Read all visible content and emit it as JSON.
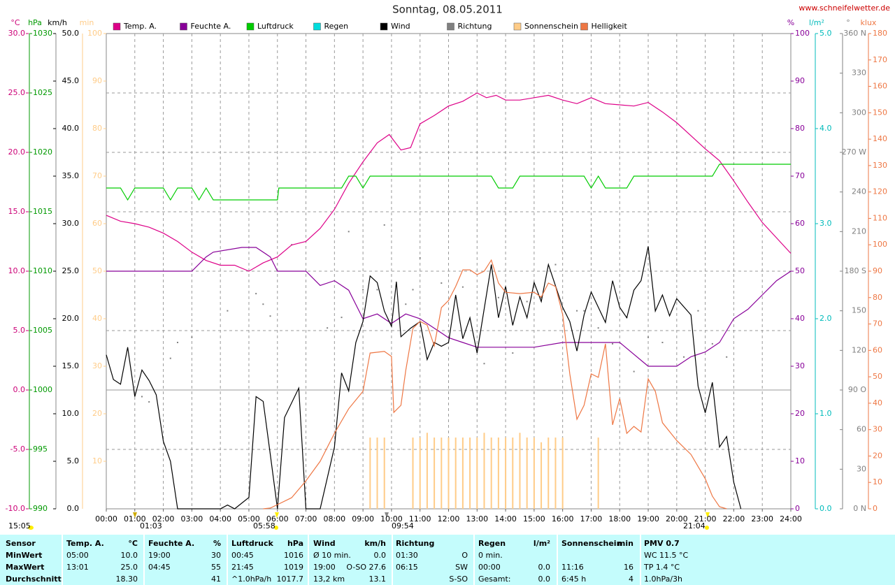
{
  "chart_data": {
    "type": "line",
    "title": "Sonntag, 08.05.2011",
    "source": "www.schneifelwetter.de",
    "xlim": [
      0,
      24
    ],
    "xticks": [
      {
        "value": 0,
        "label": "00:00"
      },
      {
        "value": 1,
        "label": "01:00"
      },
      {
        "value": 2,
        "label": "02:00"
      },
      {
        "value": 3,
        "label": "03:00"
      },
      {
        "value": 4,
        "label": "04:00"
      },
      {
        "value": 5,
        "label": "05:00"
      },
      {
        "value": 6,
        "label": "06:00"
      },
      {
        "value": 7,
        "label": "07:00"
      },
      {
        "value": 8,
        "label": "08:00"
      },
      {
        "value": 9,
        "label": "09:00"
      },
      {
        "value": 10,
        "label": "10:00"
      },
      {
        "value": 11,
        "label": "11:00"
      },
      {
        "value": 12,
        "label": "12:00"
      },
      {
        "value": 13,
        "label": "13:00"
      },
      {
        "value": 14,
        "label": "14:00"
      },
      {
        "value": 15,
        "label": "15:00"
      },
      {
        "value": 16,
        "label": "16:00"
      },
      {
        "value": 17,
        "label": "17:00"
      },
      {
        "value": 18,
        "label": "18:00"
      },
      {
        "value": 19,
        "label": "19:00"
      },
      {
        "value": 20,
        "label": "20:00"
      },
      {
        "value": 21,
        "label": "21:00"
      },
      {
        "value": 22,
        "label": "22:00"
      },
      {
        "value": 23,
        "label": "23:00"
      },
      {
        "value": 24,
        "label": "24:00"
      }
    ],
    "grid": true,
    "axes": {
      "y": {
        "unit": "°C",
        "color": "#cc0077",
        "ylim": [
          -10,
          30
        ],
        "yticks": [
          {
            "value": -10,
            "label": "-10.0"
          },
          {
            "value": -5,
            "label": "-5.0"
          },
          {
            "value": 0,
            "label": "0.0"
          },
          {
            "value": 5,
            "label": "5.0"
          },
          {
            "value": 10,
            "label": "10.0"
          },
          {
            "value": 15,
            "label": "15.0"
          },
          {
            "value": 20,
            "label": "20.0"
          },
          {
            "value": 25,
            "label": "25.0"
          },
          {
            "value": 30,
            "label": "30.0"
          }
        ]
      },
      "y2": {
        "unit": "hPa",
        "color": "#009900",
        "ylim": [
          990,
          1030
        ],
        "yticks": [
          990,
          995,
          1000,
          1005,
          1010,
          1015,
          1020,
          1025,
          1030
        ]
      },
      "y3": {
        "unit": "km/h",
        "color": "#000000",
        "ylim": [
          0,
          50
        ],
        "yticks": [
          {
            "value": 0,
            "label": "0.0"
          },
          {
            "value": 5,
            "label": "5.0"
          },
          {
            "value": 10,
            "label": "10.0"
          },
          {
            "value": 15,
            "label": "15.0"
          },
          {
            "value": 20,
            "label": "20.0"
          },
          {
            "value": 25,
            "label": "25.0"
          },
          {
            "value": 30,
            "label": "30.0"
          },
          {
            "value": 35,
            "label": "35.0"
          },
          {
            "value": 40,
            "label": "40.0"
          },
          {
            "value": 45,
            "label": "45.0"
          },
          {
            "value": 50,
            "label": "50.0"
          }
        ]
      },
      "y4": {
        "unit": "min",
        "color": "#ffcc88",
        "ylim": [
          0,
          100
        ],
        "yticks": [
          10,
          20,
          30,
          40,
          50,
          60,
          70,
          80,
          90,
          100
        ]
      },
      "y5": {
        "unit": "%",
        "color": "#880099",
        "ylim": [
          0,
          100
        ],
        "yticks": [
          0,
          10,
          20,
          30,
          40,
          50,
          60,
          70,
          80,
          90,
          100
        ]
      },
      "y6": {
        "unit": "l/m²",
        "color": "#00bbbb",
        "ylim": [
          0,
          5
        ],
        "yticks": [
          {
            "value": 0,
            "label": "0.0"
          },
          {
            "value": 1,
            "label": "1.0"
          },
          {
            "value": 2,
            "label": "2.0"
          },
          {
            "value": 3,
            "label": "3.0"
          },
          {
            "value": 4,
            "label": "4.0"
          },
          {
            "value": 5,
            "label": "5.0"
          }
        ]
      },
      "y7": {
        "unit": "°",
        "color": "#808080",
        "ylim": [
          0,
          360
        ],
        "yticks": [
          {
            "value": 0,
            "label": "0 N"
          },
          30,
          60,
          {
            "value": 90,
            "label": "90 O"
          },
          120,
          150,
          {
            "value": 180,
            "label": "180 S"
          },
          210,
          240,
          {
            "value": 270,
            "label": "270 W"
          },
          300,
          330,
          {
            "value": 360,
            "label": "360 N"
          }
        ]
      },
      "y8": {
        "unit": "klux",
        "color": "#ee7744",
        "ylim": [
          0,
          180
        ],
        "yticks": [
          0,
          10,
          20,
          30,
          40,
          50,
          60,
          70,
          80,
          90,
          100,
          110,
          120,
          130,
          140,
          150,
          160,
          170,
          180
        ]
      }
    },
    "series": [
      {
        "name": "Temp. A.",
        "color": "#dd0088",
        "axis": "y",
        "type": "line",
        "x": [
          0,
          0.5,
          1,
          1.5,
          2,
          2.5,
          3,
          3.5,
          4,
          4.5,
          5,
          5.5,
          6,
          6.5,
          7,
          7.5,
          8,
          8.5,
          9,
          9.5,
          9.92,
          10.33,
          10.67,
          11,
          11.5,
          12,
          12.5,
          13,
          13.33,
          13.67,
          14,
          14.5,
          15,
          15.5,
          16,
          16.5,
          17,
          17.5,
          18,
          18.5,
          19,
          19.5,
          20,
          20.5,
          21,
          21.5,
          22,
          22.5,
          23,
          23.5,
          24
        ],
        "values": [
          14.7,
          14.2,
          14.0,
          13.7,
          13.2,
          12.5,
          11.6,
          10.9,
          10.5,
          10.5,
          10.0,
          10.7,
          11.2,
          12.2,
          12.5,
          13.6,
          15.2,
          17.4,
          19.2,
          20.8,
          21.5,
          20.2,
          20.4,
          22.4,
          23.1,
          23.9,
          24.3,
          25.0,
          24.6,
          24.8,
          24.4,
          24.4,
          24.6,
          24.8,
          24.4,
          24.1,
          24.6,
          24.1,
          24.0,
          23.9,
          24.2,
          23.4,
          22.5,
          21.4,
          20.3,
          19.3,
          17.6,
          15.8,
          14.1,
          12.8,
          11.5
        ]
      },
      {
        "name": "Feuchte A.",
        "color": "#880099",
        "axis": "y5",
        "type": "line",
        "x": [
          0,
          3,
          3.5,
          3.75,
          4.75,
          5.25,
          5.75,
          6,
          7,
          7.5,
          8,
          8.5,
          9,
          9.5,
          10,
          10.5,
          11,
          11.5,
          12,
          12.5,
          13,
          14,
          15,
          16,
          17,
          18,
          19,
          19.5,
          20,
          20.5,
          21,
          21.5,
          22,
          22.5,
          23,
          23.5,
          24
        ],
        "values": [
          50,
          50,
          53,
          54,
          55,
          55,
          53,
          50,
          50,
          47,
          48,
          46,
          40,
          41,
          39,
          41,
          40,
          38,
          36,
          35,
          34,
          34,
          34,
          35,
          35,
          35,
          30,
          30,
          30,
          32,
          33,
          35,
          40,
          42,
          45,
          48,
          50
        ]
      },
      {
        "name": "Luftdruck",
        "color": "#00cc00",
        "axis": "y2",
        "type": "line",
        "x": [
          0,
          0.5,
          0.75,
          1,
          2,
          2.25,
          2.5,
          3,
          3.25,
          3.5,
          3.75,
          6,
          6.05,
          8.25,
          8.5,
          8.75,
          9,
          9.25,
          13.5,
          13.75,
          14.25,
          14.5,
          16.75,
          17,
          17.25,
          17.5,
          18.25,
          18.5,
          21.25,
          21.5,
          24
        ],
        "values": [
          1017,
          1017,
          1016,
          1017,
          1017,
          1016,
          1017,
          1017,
          1016,
          1017,
          1016,
          1016,
          1017,
          1017,
          1018,
          1018,
          1017,
          1018,
          1018,
          1017,
          1017,
          1018,
          1018,
          1017,
          1018,
          1017,
          1017,
          1018,
          1018,
          1019,
          1019
        ]
      },
      {
        "name": "Regen",
        "color": "#00dddd",
        "axis": "y6",
        "type": "line",
        "x": [],
        "values": []
      },
      {
        "name": "Wind",
        "color": "#000000",
        "axis": "y3",
        "type": "line",
        "x": [
          0,
          0.25,
          0.5,
          0.75,
          1,
          1.25,
          1.5,
          1.75,
          2,
          2.25,
          2.5,
          4,
          4.25,
          4.5,
          5,
          5.25,
          5.5,
          5.75,
          6,
          6.25,
          6.75,
          7,
          7.5,
          8,
          8.25,
          8.5,
          8.75,
          9,
          9.25,
          9.5,
          9.75,
          10,
          10.17,
          10.33,
          10.67,
          11,
          11.25,
          11.5,
          11.75,
          12,
          12.25,
          12.5,
          12.75,
          13,
          13.5,
          13.75,
          14,
          14.25,
          14.5,
          14.75,
          15,
          15.25,
          15.5,
          16,
          16.25,
          16.5,
          16.75,
          17,
          17.5,
          17.75,
          18,
          18.25,
          18.5,
          18.75,
          19,
          19.25,
          19.5,
          19.75,
          20,
          20.5,
          20.75,
          21,
          21.25,
          21.5,
          21.75,
          22,
          22.25
        ],
        "values": [
          16.2,
          13.6,
          13.1,
          17,
          11.8,
          14.6,
          13.5,
          12,
          7.1,
          5,
          0,
          0,
          0.4,
          0,
          1.2,
          11.8,
          11.3,
          5.7,
          0,
          9.6,
          12.7,
          0,
          0,
          6.5,
          14.3,
          12.4,
          17.5,
          19.7,
          24.5,
          23.8,
          20.8,
          19.2,
          23.9,
          18.1,
          19,
          19.7,
          15.7,
          17.5,
          17.1,
          17.5,
          22.5,
          17.9,
          20.1,
          16.4,
          25.7,
          20.1,
          23.4,
          19.3,
          22.3,
          20.1,
          23.8,
          21.8,
          25.7,
          21.2,
          19.7,
          16.6,
          20.4,
          22.8,
          19.6,
          24,
          21.2,
          20.1,
          23,
          24,
          27.6,
          20.8,
          22.5,
          20.3,
          22.1,
          20.4,
          12.9,
          10.1,
          13.3,
          6.5,
          7.6,
          2.8,
          0
        ]
      },
      {
        "name": "Richtung",
        "color": "#808080",
        "axis": "y7",
        "type": "scatter",
        "x": [
          1.25,
          1.5,
          2.25,
          2.5,
          3,
          4.25,
          5.25,
          5.5,
          5.75,
          6.5,
          7.75,
          8.25,
          8.5,
          9,
          9.5,
          9.75,
          10.5,
          10.75,
          11,
          11.75,
          12.5,
          13.25,
          13.75,
          14.25,
          14.75,
          15.25,
          15.75,
          16.5,
          16.75,
          17.25,
          17.75,
          18.25,
          18.5,
          19,
          19.5,
          20.25,
          20.75,
          21.25,
          21.75
        ],
        "values": [
          85,
          81,
          114,
          126,
          130,
          150,
          163,
          155,
          146,
          200,
          137,
          145,
          210,
          166,
          166,
          215,
          155,
          166,
          190,
          171,
          168,
          110,
          160,
          118,
          157,
          160,
          185,
          150,
          150,
          137,
          125,
          145,
          104,
          130,
          126,
          115,
          150,
          125,
          115
        ]
      },
      {
        "name": "Sonnenschein",
        "color": "#ffcc88",
        "axis": "y4",
        "type": "bar",
        "x": [
          9.25,
          9.5,
          9.75,
          10.75,
          11,
          11.25,
          11.5,
          11.75,
          12,
          12.25,
          12.5,
          12.75,
          13,
          13.25,
          13.5,
          13.75,
          14,
          14.25,
          14.5,
          14.75,
          15,
          15.25,
          15.5,
          15.75,
          16,
          17.25
        ],
        "values": [
          15,
          15,
          15,
          15,
          15,
          16,
          15,
          15,
          15,
          15,
          15,
          15,
          15,
          16,
          15,
          15,
          15,
          15,
          16,
          15,
          15,
          14,
          15,
          15,
          15,
          15
        ]
      },
      {
        "name": "Helligkeit",
        "color": "#ee7744",
        "axis": "y8",
        "type": "line",
        "x": [
          5.5,
          5.75,
          6,
          6.5,
          7,
          7.5,
          8,
          8.5,
          9,
          9.25,
          9.75,
          10,
          10.08,
          10.33,
          10.5,
          10.75,
          11,
          11.25,
          11.5,
          11.75,
          12,
          12.25,
          12.5,
          12.75,
          13,
          13.25,
          13.5,
          13.75,
          14,
          14.5,
          15,
          15.25,
          15.5,
          15.75,
          16,
          16.25,
          16.5,
          16.75,
          17,
          17.25,
          17.5,
          17.75,
          18,
          18.25,
          18.5,
          18.75,
          19,
          19.25,
          19.5,
          20,
          20.5,
          21,
          21.25,
          21.5,
          21.75
        ],
        "values": [
          0,
          0.3,
          1.6,
          4.2,
          10.6,
          18,
          28.6,
          37.9,
          44.5,
          59,
          59.6,
          57.7,
          36.5,
          39.2,
          52.4,
          68.3,
          71,
          69.6,
          61.7,
          76.2,
          78.9,
          84.2,
          90.5,
          90.5,
          88.7,
          90,
          94.2,
          85.5,
          82,
          81.5,
          82,
          80.2,
          85.5,
          84.2,
          73.6,
          51.1,
          33.9,
          39.2,
          51.1,
          49.8,
          62.5,
          31.8,
          41.8,
          28.6,
          31.2,
          29.1,
          49.2,
          44.5,
          32.6,
          25.9,
          20.6,
          11.4,
          4.8,
          0.8,
          0
        ]
      }
    ],
    "annotations": [
      "15:05",
      "01:03",
      "05:58",
      "09:54",
      "21:04"
    ]
  },
  "table": {
    "columns": [
      {
        "name": "Sensor"
      },
      {
        "name": "Temp. A.",
        "unit": "°C"
      },
      {
        "name": "Feuchte A.",
        "unit": "%"
      },
      {
        "name": "Luftdruck",
        "unit": "hPa"
      },
      {
        "name": "Wind",
        "unit": "km/h"
      },
      {
        "name": "Richtung"
      },
      {
        "name": "Regen",
        "unit": "l/m²"
      },
      {
        "name": "Sonnenschein",
        "unit": "min"
      },
      {
        "name": "PMV 0.7"
      }
    ],
    "rows": [
      {
        "label": "MinWert",
        "cells": [
          {
            "left": "05:00",
            "right": "10.0"
          },
          {
            "left": "19:00",
            "right": "30"
          },
          {
            "left": "00:45",
            "right": "1016"
          },
          {
            "left": "Ø 10 min.",
            "right": "0.0"
          },
          {
            "left": "01:30",
            "right": "O"
          },
          {
            "left": "0 min."
          },
          {},
          {
            "left": "WC 11.5 °C"
          }
        ]
      },
      {
        "label": "MaxWert",
        "cells": [
          {
            "left": "13:01",
            "right": "25.0"
          },
          {
            "left": "04:45",
            "right": "55"
          },
          {
            "left": "21:45",
            "right": "1019"
          },
          {
            "left": "19:00",
            "right": "O-SO 27.6"
          },
          {
            "left": "06:15",
            "right": "SW"
          },
          {
            "left": "00:00",
            "right": "0.0"
          },
          {
            "left": "11:16",
            "right": "16"
          },
          {
            "left": "TP 1.4 °C"
          }
        ]
      },
      {
        "label": "Durchschnitt",
        "cells": [
          {
            "right": "18.30"
          },
          {
            "right": "41"
          },
          {
            "left": "^1.0hPa/h",
            "right": "1017.7"
          },
          {
            "left": "13,2 km",
            "right": "13.1"
          },
          {
            "right": "S-SO"
          },
          {
            "left": "Gesamt:",
            "right": "0.0"
          },
          {
            "left": "6:45 h",
            "right": "4"
          },
          {
            "left": "1.0hPa/3h"
          }
        ]
      }
    ]
  }
}
